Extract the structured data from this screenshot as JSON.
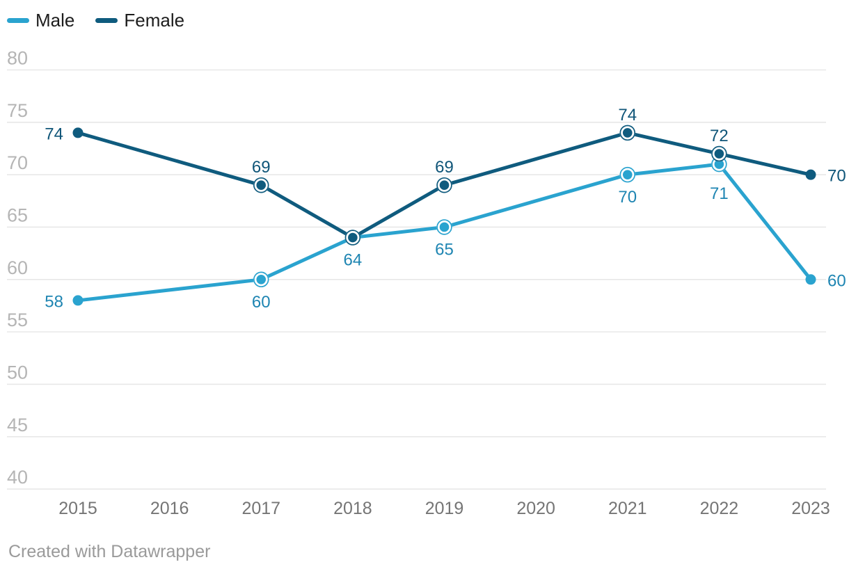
{
  "legend": {
    "items": [
      {
        "label": "Male"
      },
      {
        "label": "Female"
      }
    ]
  },
  "footer": {
    "text": "Created with Datawrapper"
  },
  "colors": {
    "male_line": "#2aa3cf",
    "male_label": "#1e85b2",
    "female_line": "#0f5b7e",
    "female_label": "#0f5578",
    "gridline": "#e8e8e8",
    "y_tick_text": "#b5b5b5",
    "x_tick_text": "#757575",
    "legend_text": "#1d1d1d",
    "footer_text": "#9a9a9a",
    "background": "#ffffff"
  },
  "chart_data": {
    "type": "line",
    "title": "",
    "xlabel": "",
    "ylabel": "",
    "x": [
      2015,
      2016,
      2017,
      2018,
      2019,
      2020,
      2021,
      2022,
      2023
    ],
    "yticks": [
      40,
      45,
      50,
      55,
      60,
      65,
      70,
      75,
      80
    ],
    "ylim": [
      40,
      80
    ],
    "grid": "horizontal",
    "legend_position": "top-left",
    "series": [
      {
        "name": "Male",
        "line_color": "#2aa3cf",
        "label_color": "#1e85b2",
        "values": [
          58,
          null,
          60,
          64,
          65,
          null,
          70,
          71,
          60
        ],
        "points": [
          {
            "year": 2015,
            "value": 58,
            "marker": "solid",
            "label": "left"
          },
          {
            "year": 2017,
            "value": 60,
            "marker": "ring",
            "label": "below"
          },
          {
            "year": 2018,
            "value": 64,
            "marker": "none",
            "label": "below"
          },
          {
            "year": 2019,
            "value": 65,
            "marker": "ring",
            "label": "below"
          },
          {
            "year": 2021,
            "value": 70,
            "marker": "ring",
            "label": "below"
          },
          {
            "year": 2022,
            "value": 71,
            "marker": "ring",
            "label": "below",
            "label_dy": 10
          },
          {
            "year": 2023,
            "value": 60,
            "marker": "solid",
            "label": "right"
          }
        ]
      },
      {
        "name": "Female",
        "line_color": "#0f5b7e",
        "label_color": "#0f5578",
        "values": [
          74,
          null,
          69,
          64,
          69,
          null,
          74,
          72,
          70
        ],
        "points": [
          {
            "year": 2015,
            "value": 74,
            "marker": "solid",
            "label": "left"
          },
          {
            "year": 2017,
            "value": 69,
            "marker": "ring",
            "label": "above"
          },
          {
            "year": 2018,
            "value": 64,
            "marker": "ring",
            "label": "none"
          },
          {
            "year": 2019,
            "value": 69,
            "marker": "ring",
            "label": "above"
          },
          {
            "year": 2021,
            "value": 74,
            "marker": "ring",
            "label": "above"
          },
          {
            "year": 2022,
            "value": 72,
            "marker": "ring",
            "label": "above"
          },
          {
            "year": 2023,
            "value": 70,
            "marker": "solid",
            "label": "right"
          }
        ]
      }
    ]
  }
}
